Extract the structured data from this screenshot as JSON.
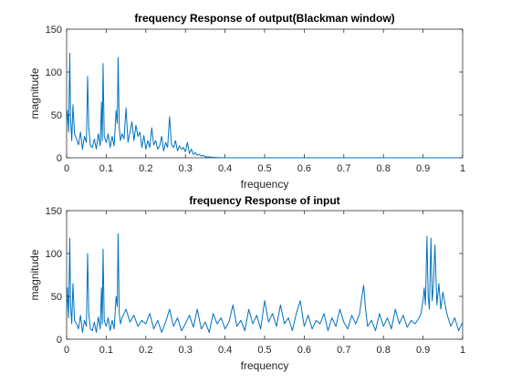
{
  "figure": {
    "background": "#ffffff",
    "line_color": "#0072bd"
  },
  "chart_data": [
    {
      "type": "line",
      "title": "frequency Response of output(Blackman window)",
      "xlabel": "frequency",
      "ylabel": "magnitude",
      "xlim": [
        0,
        1
      ],
      "ylim": [
        0,
        150
      ],
      "xticks": [
        0,
        0.1,
        0.2,
        0.3,
        0.4,
        0.5,
        0.6,
        0.7,
        0.8,
        0.9,
        1
      ],
      "xtick_labels": [
        "0",
        "0.1",
        "0.2",
        "0.3",
        "0.4",
        "0.5",
        "0.6",
        "0.7",
        "0.8",
        "0.9",
        "1"
      ],
      "yticks": [
        0,
        50,
        100,
        150
      ],
      "ytick_labels": [
        "0",
        "50",
        "100",
        "150"
      ],
      "grid": false,
      "series": [
        {
          "color": "#0072bd",
          "x": [
            0,
            0.002,
            0.005,
            0.008,
            0.01,
            0.013,
            0.016,
            0.02,
            0.025,
            0.03,
            0.035,
            0.04,
            0.045,
            0.05,
            0.053,
            0.056,
            0.06,
            0.065,
            0.07,
            0.075,
            0.08,
            0.085,
            0.088,
            0.09,
            0.092,
            0.095,
            0.1,
            0.105,
            0.11,
            0.115,
            0.12,
            0.125,
            0.128,
            0.13,
            0.133,
            0.136,
            0.14,
            0.145,
            0.15,
            0.155,
            0.16,
            0.165,
            0.17,
            0.175,
            0.18,
            0.185,
            0.19,
            0.195,
            0.2,
            0.205,
            0.21,
            0.215,
            0.22,
            0.225,
            0.23,
            0.235,
            0.24,
            0.245,
            0.25,
            0.255,
            0.26,
            0.265,
            0.27,
            0.275,
            0.28,
            0.285,
            0.29,
            0.295,
            0.3,
            0.305,
            0.31,
            0.315,
            0.32,
            0.325,
            0.33,
            0.335,
            0.34,
            0.345,
            0.35,
            0.36,
            0.37,
            0.38,
            0.4,
            0.45,
            0.5,
            0.55,
            0.6,
            0.65,
            0.7,
            0.75,
            0.8,
            0.85,
            0.9,
            0.95,
            1
          ],
          "y": [
            40,
            55,
            30,
            122,
            45,
            20,
            62,
            28,
            22,
            15,
            30,
            10,
            25,
            18,
            95,
            35,
            14,
            12,
            22,
            10,
            28,
            14,
            65,
            20,
            110,
            25,
            18,
            28,
            12,
            25,
            14,
            55,
            40,
            117,
            35,
            20,
            28,
            22,
            58,
            18,
            30,
            42,
            20,
            38,
            25,
            30,
            12,
            26,
            10,
            20,
            12,
            35,
            15,
            20,
            10,
            14,
            25,
            8,
            18,
            12,
            48,
            15,
            12,
            20,
            8,
            14,
            10,
            12,
            7,
            18,
            5,
            10,
            4,
            6,
            3,
            4,
            2,
            3,
            1,
            1,
            0.5,
            0.3,
            0,
            0,
            0,
            0,
            0,
            0,
            0,
            0,
            0,
            0,
            0,
            0,
            0
          ]
        }
      ]
    },
    {
      "type": "line",
      "title": "frequency Response of input",
      "xlabel": "frequency",
      "ylabel": "magnitude",
      "xlim": [
        0,
        1
      ],
      "ylim": [
        0,
        150
      ],
      "xticks": [
        0,
        0.1,
        0.2,
        0.3,
        0.4,
        0.5,
        0.6,
        0.7,
        0.8,
        0.9,
        1
      ],
      "xtick_labels": [
        "0",
        "0.1",
        "0.2",
        "0.3",
        "0.4",
        "0.5",
        "0.6",
        "0.7",
        "0.8",
        "0.9",
        "1"
      ],
      "yticks": [
        0,
        50,
        100,
        150
      ],
      "ytick_labels": [
        "0",
        "50",
        "100",
        "150"
      ],
      "grid": false,
      "series": [
        {
          "color": "#0072bd",
          "x": [
            0,
            0.002,
            0.005,
            0.008,
            0.01,
            0.013,
            0.016,
            0.02,
            0.025,
            0.03,
            0.035,
            0.04,
            0.045,
            0.05,
            0.053,
            0.056,
            0.06,
            0.065,
            0.07,
            0.075,
            0.08,
            0.085,
            0.088,
            0.09,
            0.092,
            0.095,
            0.1,
            0.105,
            0.11,
            0.115,
            0.12,
            0.125,
            0.128,
            0.13,
            0.133,
            0.136,
            0.14,
            0.15,
            0.16,
            0.17,
            0.18,
            0.19,
            0.2,
            0.21,
            0.22,
            0.23,
            0.24,
            0.25,
            0.26,
            0.27,
            0.28,
            0.29,
            0.3,
            0.31,
            0.32,
            0.33,
            0.34,
            0.35,
            0.36,
            0.37,
            0.38,
            0.39,
            0.4,
            0.41,
            0.42,
            0.43,
            0.44,
            0.45,
            0.46,
            0.47,
            0.48,
            0.49,
            0.5,
            0.51,
            0.52,
            0.53,
            0.54,
            0.55,
            0.56,
            0.57,
            0.58,
            0.59,
            0.6,
            0.61,
            0.62,
            0.63,
            0.64,
            0.65,
            0.66,
            0.67,
            0.68,
            0.69,
            0.7,
            0.71,
            0.72,
            0.73,
            0.74,
            0.745,
            0.75,
            0.755,
            0.76,
            0.77,
            0.78,
            0.79,
            0.8,
            0.81,
            0.82,
            0.83,
            0.84,
            0.85,
            0.86,
            0.87,
            0.88,
            0.89,
            0.895,
            0.9,
            0.903,
            0.906,
            0.91,
            0.913,
            0.916,
            0.92,
            0.923,
            0.926,
            0.93,
            0.935,
            0.94,
            0.945,
            0.95,
            0.96,
            0.97,
            0.98,
            0.99,
            1
          ],
          "y": [
            30,
            60,
            25,
            118,
            40,
            18,
            65,
            22,
            18,
            12,
            28,
            8,
            22,
            15,
            100,
            30,
            12,
            10,
            20,
            8,
            26,
            12,
            60,
            18,
            105,
            22,
            15,
            25,
            10,
            22,
            12,
            50,
            38,
            123,
            30,
            18,
            25,
            35,
            20,
            28,
            15,
            22,
            18,
            30,
            12,
            22,
            8,
            20,
            35,
            15,
            25,
            10,
            18,
            28,
            14,
            35,
            12,
            20,
            8,
            30,
            18,
            25,
            12,
            20,
            40,
            15,
            22,
            10,
            35,
            18,
            28,
            12,
            45,
            20,
            30,
            15,
            40,
            18,
            25,
            10,
            30,
            45,
            15,
            28,
            12,
            22,
            18,
            30,
            10,
            25,
            15,
            35,
            20,
            12,
            28,
            18,
            30,
            48,
            63,
            35,
            15,
            22,
            10,
            30,
            15,
            25,
            12,
            35,
            18,
            28,
            14,
            22,
            18,
            25,
            30,
            45,
            60,
            40,
            120,
            50,
            35,
            118,
            45,
            60,
            110,
            40,
            65,
            35,
            55,
            30,
            15,
            25,
            10,
            20
          ]
        }
      ]
    }
  ]
}
